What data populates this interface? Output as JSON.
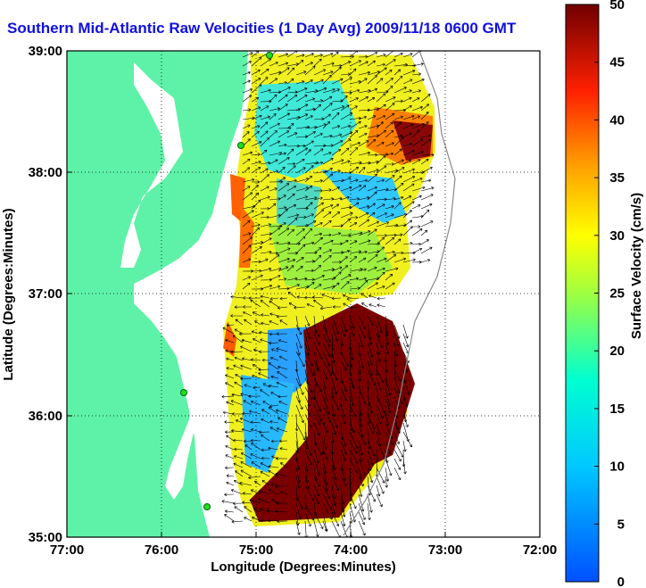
{
  "title": "Southern Mid-Atlantic Raw Velocities (1 Day Avg) 2009/11/18 0600 GMT",
  "map": {
    "xlabel": "Longitude (Degrees:Minutes)",
    "ylabel": "Latitude (Degrees:Minutes)",
    "x_ticks": [
      "77:00",
      "76:00",
      "75:00",
      "74:00",
      "73:00",
      "72:00"
    ],
    "y_ticks": [
      "39:00",
      "38:00",
      "37:00",
      "36:00",
      "35:00"
    ],
    "land_color": "#5ef2a8",
    "grid": "dotted"
  },
  "colorbar": {
    "label": "Surface Velocity (cm/s)",
    "ticks": [
      "50",
      "45",
      "40",
      "35",
      "30",
      "25",
      "20",
      "15",
      "10",
      "5",
      "0"
    ],
    "min": 0,
    "max": 50,
    "colormap": "jet"
  }
}
